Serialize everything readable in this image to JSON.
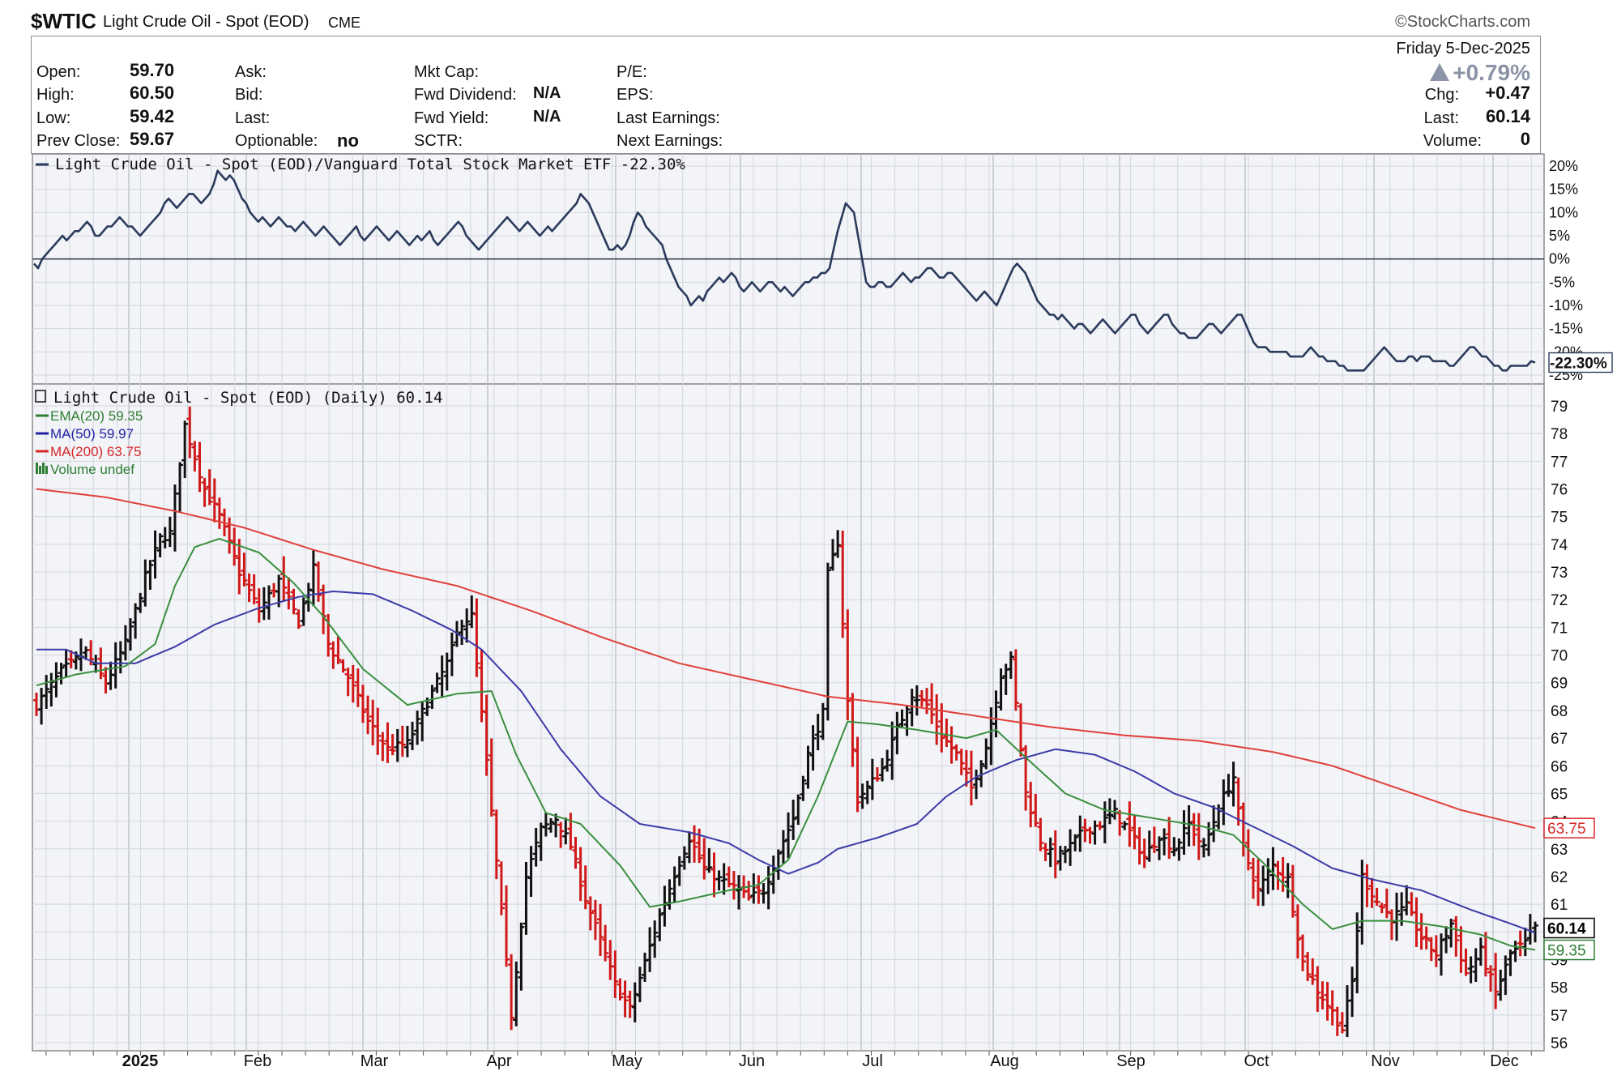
{
  "header": {
    "symbol": "$WTIC",
    "name": "Light Crude Oil - Spot (EOD)",
    "exchange": "CME",
    "copyright": "©StockCharts.com",
    "date": "Friday  5-Dec-2025"
  },
  "quote": {
    "open_label": "Open:",
    "open": "59.70",
    "high_label": "High:",
    "high": "60.50",
    "low_label": "Low:",
    "low": "59.42",
    "prev_close_label": "Prev Close:",
    "prev_close": "59.67",
    "ask_label": "Ask:",
    "bid_label": "Bid:",
    "last_label_mid": "Last:",
    "optionable_label": "Optionable:",
    "optionable": "no",
    "mkt_cap_label": "Mkt Cap:",
    "fwd_div_label": "Fwd Dividend:",
    "fwd_div": "N/A",
    "fwd_yield_label": "Fwd Yield:",
    "fwd_yield": "N/A",
    "sctr_label": "SCTR:",
    "pe_label": "P/E:",
    "eps_label": "EPS:",
    "last_earnings_label": "Last Earnings:",
    "next_earnings_label": "Next Earnings:",
    "pct_change": "+0.79%",
    "chg_label": "Chg:",
    "chg": "+0.47",
    "last_label": "Last:",
    "last": "60.14",
    "volume_label": "Volume:",
    "volume": "0"
  },
  "chart_data": [
    {
      "type": "line",
      "title": "Light Crude Oil - Spot (EOD)/Vanguard Total Stock Market ETF -22.30%",
      "ylabels": [
        "20%",
        "15%",
        "10%",
        "5%",
        "0%",
        "-5%",
        "-10%",
        "-15%",
        "-20%",
        "-25%"
      ],
      "ylim": [
        -25,
        20
      ],
      "last_value_label": "-22.30%",
      "series": [
        {
          "color": "#2b3a5c",
          "values": [
            -1,
            -2,
            0,
            1,
            2,
            3,
            4,
            5,
            4,
            5,
            6,
            6,
            7,
            8,
            7,
            5,
            5,
            6,
            7,
            7,
            8,
            9,
            8,
            7,
            7,
            6,
            5,
            6,
            7,
            8,
            9,
            10,
            12,
            13,
            12,
            11,
            12,
            13,
            14,
            14,
            13,
            12,
            13,
            14,
            16,
            19,
            18,
            17,
            18,
            17,
            15,
            13,
            12,
            10,
            9,
            8,
            9,
            8,
            7,
            8,
            9,
            8,
            7,
            7,
            6,
            7,
            8,
            7,
            6,
            5,
            6,
            7,
            6,
            5,
            4,
            3,
            4,
            5,
            6,
            7,
            5,
            4,
            5,
            6,
            7,
            6,
            5,
            4,
            5,
            6,
            5,
            4,
            3,
            4,
            5,
            4,
            5,
            6,
            4,
            3,
            4,
            5,
            6,
            7,
            8,
            7,
            5,
            4,
            3,
            2,
            3,
            4,
            5,
            6,
            7,
            8,
            9,
            8,
            7,
            6,
            7,
            8,
            7,
            6,
            5,
            6,
            7,
            6,
            7,
            8,
            9,
            10,
            11,
            12,
            14,
            13,
            12,
            10,
            8,
            6,
            4,
            2,
            2,
            3,
            2,
            3,
            5,
            8,
            10,
            9,
            7,
            6,
            5,
            4,
            3,
            0,
            -2,
            -4,
            -6,
            -7,
            -8,
            -10,
            -9,
            -8,
            -9,
            -7,
            -6,
            -5,
            -4,
            -5,
            -4,
            -3,
            -4,
            -6,
            -7,
            -6,
            -5,
            -6,
            -7,
            -6,
            -5,
            -5,
            -6,
            -7,
            -6,
            -7,
            -8,
            -7,
            -6,
            -5,
            -5,
            -4,
            -4,
            -3,
            -3,
            -2,
            2,
            6,
            9,
            12,
            11,
            10,
            5,
            0,
            -5,
            -6,
            -6,
            -5,
            -5,
            -6,
            -6,
            -5,
            -4,
            -3,
            -4,
            -5,
            -4,
            -4,
            -3,
            -2,
            -2,
            -3,
            -4,
            -4,
            -3,
            -3,
            -4,
            -5,
            -6,
            -7,
            -8,
            -9,
            -8,
            -7,
            -8,
            -9,
            -10,
            -8,
            -6,
            -4,
            -2,
            -1,
            -2,
            -3,
            -5,
            -7,
            -9,
            -10,
            -11,
            -12,
            -12,
            -13,
            -12,
            -13,
            -14,
            -15,
            -14,
            -14,
            -15,
            -16,
            -15,
            -14,
            -13,
            -14,
            -15,
            -16,
            -15,
            -14,
            -13,
            -12,
            -12,
            -14,
            -15,
            -16,
            -15,
            -14,
            -13,
            -12,
            -12,
            -14,
            -15,
            -16,
            -16,
            -17,
            -17,
            -17,
            -16,
            -15,
            -14,
            -14,
            -15,
            -16,
            -15,
            -14,
            -13,
            -12,
            -12,
            -14,
            -16,
            -18,
            -19,
            -19,
            -19,
            -20,
            -20,
            -20,
            -20,
            -20,
            -21,
            -21,
            -21,
            -21,
            -20,
            -19,
            -20,
            -21,
            -21,
            -22,
            -22,
            -22,
            -23,
            -23,
            -24,
            -24,
            -24,
            -24,
            -24,
            -23,
            -22,
            -21,
            -20,
            -19,
            -20,
            -21,
            -22,
            -22,
            -22,
            -21,
            -21,
            -22,
            -21,
            -21,
            -21,
            -22,
            -22,
            -22,
            -22,
            -23,
            -23,
            -22,
            -21,
            -20,
            -19,
            -19,
            -20,
            -21,
            -21,
            -22,
            -23,
            -23,
            -24,
            -24,
            -23,
            -23,
            -23,
            -23,
            -23,
            -22,
            -22.3
          ]
        }
      ]
    },
    {
      "type": "bar",
      "subtype": "ohlc",
      "title": "Light Crude Oil - Spot (EOD) (Daily) 60.14",
      "legend": [
        {
          "label": "EMA(20) 59.35",
          "color": "#2e7d32"
        },
        {
          "label": "MA(50) 59.97",
          "color": "#2323a3"
        },
        {
          "label": "MA(200) 63.75",
          "color": "#d62728"
        },
        {
          "label": "Volume undef",
          "color": "#2e7d32"
        }
      ],
      "ylabels": [
        "79",
        "78",
        "77",
        "76",
        "75",
        "74",
        "73",
        "72",
        "71",
        "70",
        "69",
        "68",
        "67",
        "66",
        "65",
        "64",
        "63",
        "62",
        "61",
        "60",
        "59",
        "58",
        "57",
        "56"
      ],
      "ylim": [
        55.8,
        79.4
      ],
      "xlabels": [
        "2025",
        "Feb",
        "Mar",
        "Apr",
        "May",
        "Jun",
        "Jul",
        "Aug",
        "Sep",
        "Oct",
        "Nov",
        "Dec"
      ],
      "price_tags": [
        {
          "label": "63.75",
          "value": 63.75,
          "color": "#d62728"
        },
        {
          "label": "60.14",
          "value": 60.14,
          "color": "#000000"
        },
        {
          "label": "59.35",
          "value": 59.35,
          "color": "#2e7d32"
        }
      ],
      "close_anchors": [
        [
          0,
          68.2
        ],
        [
          5,
          69.4
        ],
        [
          10,
          70.1
        ],
        [
          14,
          69.0
        ],
        [
          18,
          70.4
        ],
        [
          22,
          72.8
        ],
        [
          25,
          74.2
        ],
        [
          27,
          74.4
        ],
        [
          30,
          78.3
        ],
        [
          34,
          76.0
        ],
        [
          37,
          75.0
        ],
        [
          41,
          73.0
        ],
        [
          45,
          71.6
        ],
        [
          49,
          72.7
        ],
        [
          53,
          71.2
        ],
        [
          56,
          73.1
        ],
        [
          59,
          70.4
        ],
        [
          63,
          69.2
        ],
        [
          67,
          67.6
        ],
        [
          71,
          66.6
        ],
        [
          75,
          66.8
        ],
        [
          79,
          68.3
        ],
        [
          83,
          69.7
        ],
        [
          86,
          71.2
        ],
        [
          88,
          71.4
        ],
        [
          91,
          66.1
        ],
        [
          94,
          60.7
        ],
        [
          96,
          57.0
        ],
        [
          99,
          62.0
        ],
        [
          102,
          63.7
        ],
        [
          105,
          64.1
        ],
        [
          108,
          63.1
        ],
        [
          111,
          61.2
        ],
        [
          114,
          59.7
        ],
        [
          117,
          58.1
        ],
        [
          120,
          57.2
        ],
        [
          123,
          58.9
        ],
        [
          126,
          60.6
        ],
        [
          129,
          62.1
        ],
        [
          132,
          63.4
        ],
        [
          135,
          62.3
        ],
        [
          138,
          61.9
        ],
        [
          141,
          61.6
        ],
        [
          144,
          61.2
        ],
        [
          147,
          61.5
        ],
        [
          150,
          62.9
        ],
        [
          153,
          64.1
        ],
        [
          156,
          66.4
        ],
        [
          159,
          67.9
        ],
        [
          160,
          72.9
        ],
        [
          162,
          74.1
        ],
        [
          164,
          68.3
        ],
        [
          166,
          64.8
        ],
        [
          168,
          65.2
        ],
        [
          171,
          65.9
        ],
        [
          174,
          67.3
        ],
        [
          177,
          68.6
        ],
        [
          180,
          68.2
        ],
        [
          183,
          67.1
        ],
        [
          186,
          66.4
        ],
        [
          189,
          65.2
        ],
        [
          192,
          66.7
        ],
        [
          195,
          69.3
        ],
        [
          197,
          69.8
        ],
        [
          200,
          65.0
        ],
        [
          203,
          63.3
        ],
        [
          206,
          62.6
        ],
        [
          209,
          63.1
        ],
        [
          212,
          63.7
        ],
        [
          215,
          63.9
        ],
        [
          218,
          64.3
        ],
        [
          221,
          63.6
        ],
        [
          224,
          62.7
        ],
        [
          227,
          63.5
        ],
        [
          230,
          63.0
        ],
        [
          233,
          63.9
        ],
        [
          236,
          63.0
        ],
        [
          239,
          64.5
        ],
        [
          242,
          65.6
        ],
        [
          244,
          63.0
        ],
        [
          247,
          61.5
        ],
        [
          250,
          62.4
        ],
        [
          253,
          61.9
        ],
        [
          256,
          58.9
        ],
        [
          259,
          57.9
        ],
        [
          262,
          57.1
        ],
        [
          264,
          56.5
        ],
        [
          266,
          58.2
        ],
        [
          268,
          62.0
        ],
        [
          271,
          61.1
        ],
        [
          274,
          60.5
        ],
        [
          277,
          60.9
        ],
        [
          280,
          59.8
        ],
        [
          283,
          59.2
        ],
        [
          286,
          60.3
        ],
        [
          289,
          58.5
        ],
        [
          292,
          59.3
        ],
        [
          295,
          57.8
        ],
        [
          298,
          59.2
        ],
        [
          301,
          59.6
        ],
        [
          303,
          60.14
        ]
      ],
      "ema20_anchors": [
        [
          0,
          68.9
        ],
        [
          8,
          69.3
        ],
        [
          18,
          69.6
        ],
        [
          24,
          70.4
        ],
        [
          28,
          72.5
        ],
        [
          32,
          73.9
        ],
        [
          37,
          74.2
        ],
        [
          45,
          73.7
        ],
        [
          52,
          72.6
        ],
        [
          58,
          71.4
        ],
        [
          66,
          69.5
        ],
        [
          75,
          68.2
        ],
        [
          85,
          68.6
        ],
        [
          92,
          68.7
        ],
        [
          97,
          66.4
        ],
        [
          103,
          64.3
        ],
        [
          110,
          63.9
        ],
        [
          118,
          62.4
        ],
        [
          124,
          60.9
        ],
        [
          130,
          61.1
        ],
        [
          140,
          61.5
        ],
        [
          146,
          61.7
        ],
        [
          152,
          62.6
        ],
        [
          158,
          64.9
        ],
        [
          164,
          67.6
        ],
        [
          170,
          67.5
        ],
        [
          178,
          67.3
        ],
        [
          188,
          67.0
        ],
        [
          194,
          67.3
        ],
        [
          200,
          66.3
        ],
        [
          208,
          65.0
        ],
        [
          216,
          64.4
        ],
        [
          226,
          64.1
        ],
        [
          236,
          63.8
        ],
        [
          242,
          63.5
        ],
        [
          248,
          62.5
        ],
        [
          256,
          61.0
        ],
        [
          262,
          60.1
        ],
        [
          268,
          60.4
        ],
        [
          276,
          60.4
        ],
        [
          284,
          60.2
        ],
        [
          292,
          59.9
        ],
        [
          298,
          59.5
        ],
        [
          303,
          59.35
        ]
      ],
      "ma50_anchors": [
        [
          0,
          70.2
        ],
        [
          6,
          70.2
        ],
        [
          12,
          69.7
        ],
        [
          20,
          69.7
        ],
        [
          28,
          70.3
        ],
        [
          36,
          71.1
        ],
        [
          45,
          71.7
        ],
        [
          53,
          72.1
        ],
        [
          60,
          72.3
        ],
        [
          68,
          72.2
        ],
        [
          76,
          71.6
        ],
        [
          84,
          70.9
        ],
        [
          90,
          70.2
        ],
        [
          98,
          68.7
        ],
        [
          106,
          66.6
        ],
        [
          114,
          64.9
        ],
        [
          122,
          63.9
        ],
        [
          132,
          63.6
        ],
        [
          140,
          63.2
        ],
        [
          146,
          62.6
        ],
        [
          152,
          62.1
        ],
        [
          158,
          62.5
        ],
        [
          162,
          63.0
        ],
        [
          170,
          63.4
        ],
        [
          178,
          63.9
        ],
        [
          184,
          64.9
        ],
        [
          190,
          65.6
        ],
        [
          198,
          66.2
        ],
        [
          206,
          66.6
        ],
        [
          214,
          66.4
        ],
        [
          222,
          65.8
        ],
        [
          230,
          65.0
        ],
        [
          238,
          64.5
        ],
        [
          246,
          63.8
        ],
        [
          254,
          63.1
        ],
        [
          262,
          62.3
        ],
        [
          270,
          61.9
        ],
        [
          280,
          61.5
        ],
        [
          290,
          60.8
        ],
        [
          298,
          60.3
        ],
        [
          303,
          59.97
        ]
      ],
      "ma200_anchors": [
        [
          0,
          76.0
        ],
        [
          14,
          75.7
        ],
        [
          28,
          75.2
        ],
        [
          42,
          74.6
        ],
        [
          56,
          73.8
        ],
        [
          70,
          73.1
        ],
        [
          85,
          72.5
        ],
        [
          100,
          71.6
        ],
        [
          115,
          70.6
        ],
        [
          130,
          69.7
        ],
        [
          145,
          69.1
        ],
        [
          160,
          68.5
        ],
        [
          175,
          68.2
        ],
        [
          190,
          67.8
        ],
        [
          205,
          67.4
        ],
        [
          220,
          67.1
        ],
        [
          235,
          66.9
        ],
        [
          250,
          66.5
        ],
        [
          262,
          66.0
        ],
        [
          275,
          65.2
        ],
        [
          288,
          64.4
        ],
        [
          303,
          63.75
        ]
      ]
    }
  ]
}
